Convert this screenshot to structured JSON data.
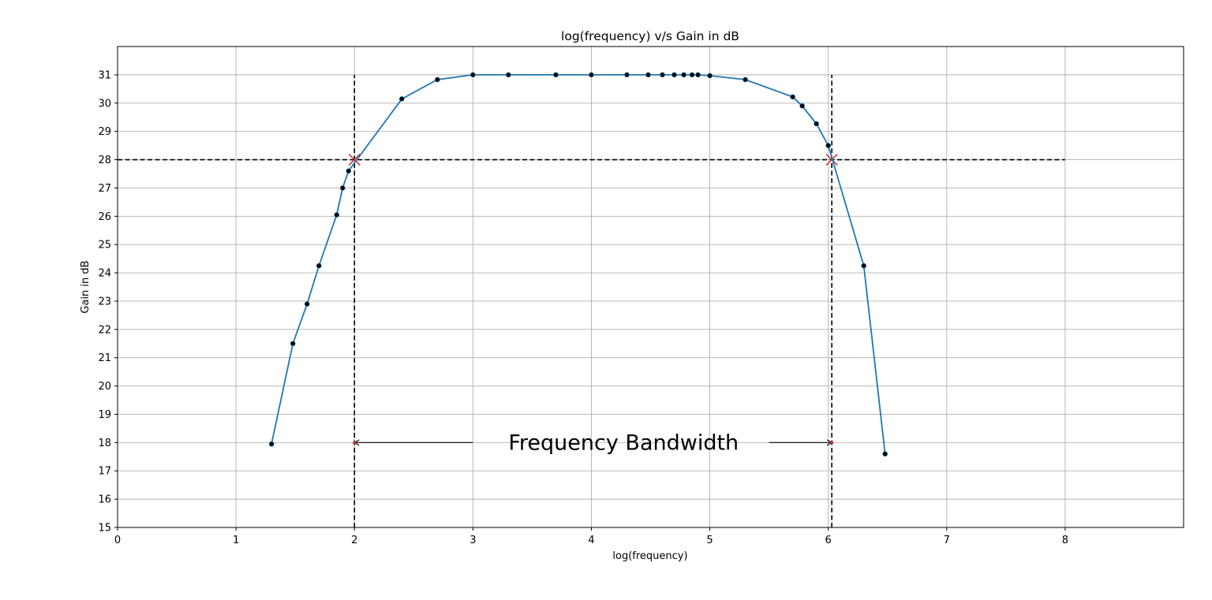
{
  "chart_data": {
    "type": "line",
    "title": "log(frequency) v/s Gain in dB",
    "xlabel": "log(frequency)",
    "ylabel": "Gain in dB",
    "xlim": [
      0,
      9
    ],
    "ylim": [
      15,
      32
    ],
    "xticks": [
      "0",
      "1",
      "2",
      "3",
      "4",
      "5",
      "6",
      "7",
      "8"
    ],
    "yticks": [
      "15",
      "16",
      "17",
      "18",
      "19",
      "20",
      "21",
      "22",
      "23",
      "24",
      "25",
      "26",
      "27",
      "28",
      "29",
      "30",
      "31"
    ],
    "grid": true,
    "colors": {
      "line": "#1f77b4",
      "marker": "#000000",
      "guide": "#000000",
      "cross": "#d62728",
      "grid": "#b0b0b0"
    },
    "series": [
      {
        "x": [
          1.3,
          1.48,
          1.6,
          1.7,
          1.85,
          1.9,
          1.95,
          2.4,
          2.7,
          3.0,
          3.3,
          3.7,
          4.0,
          4.3,
          4.48,
          4.6,
          4.7,
          4.78,
          4.85,
          4.9,
          5.0,
          5.3,
          5.7,
          5.78,
          5.9,
          6.0,
          6.3,
          6.48
        ],
        "y": [
          17.95,
          21.5,
          22.9,
          24.25,
          26.05,
          27.0,
          27.6,
          30.15,
          30.83,
          31.0,
          31.0,
          31.0,
          31.0,
          31.0,
          31.0,
          31.0,
          31.0,
          31.0,
          31.0,
          31.0,
          30.97,
          30.83,
          30.22,
          29.9,
          29.27,
          28.5,
          24.25,
          17.6
        ]
      }
    ],
    "guides": {
      "hline_y": 28,
      "hline_x_range": [
        0,
        8
      ],
      "vlines_x": [
        2.0,
        6.03
      ],
      "vline_y_range": [
        15,
        31
      ],
      "crossings": [
        [
          2.0,
          28
        ],
        [
          6.03,
          28
        ]
      ],
      "bandwidth_y": 18,
      "arrow_left_x": [
        3.0,
        2.0
      ],
      "arrow_right_x": [
        5.5,
        6.03
      ]
    },
    "annotation": "Frequency Bandwidth",
    "annotation_x": 3.3
  }
}
